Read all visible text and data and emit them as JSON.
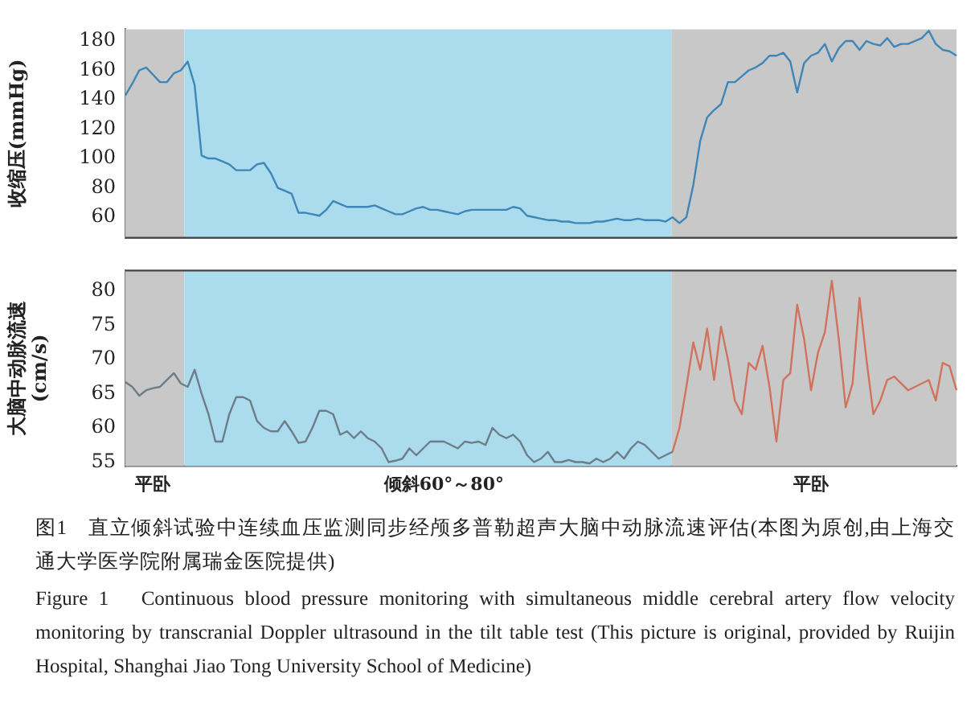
{
  "chart_data": [
    {
      "type": "line",
      "ylabel": "收缩压(mmHg)",
      "categories": [
        null,
        null,
        null,
        null,
        null,
        null,
        null,
        null,
        null,
        null,
        null,
        null,
        null,
        null,
        null,
        null,
        null,
        null,
        null,
        null,
        null,
        null,
        null,
        null,
        null,
        null,
        null,
        null,
        null,
        null,
        null,
        null,
        null,
        null,
        null,
        null,
        null,
        null,
        null,
        null,
        null,
        null,
        null,
        null,
        null,
        null,
        null,
        null,
        null,
        null,
        null,
        null,
        null,
        null,
        null,
        null,
        null,
        null,
        null,
        null,
        null,
        null,
        null,
        null,
        null,
        null,
        null,
        null,
        null,
        null,
        null,
        null,
        null,
        null,
        null,
        null,
        null,
        null,
        null,
        null,
        null,
        null,
        null,
        null,
        null,
        null,
        null,
        null,
        null,
        null,
        null,
        null,
        null,
        null,
        null,
        null,
        null,
        null,
        null,
        null,
        null,
        null,
        null,
        null,
        null,
        null,
        null,
        null,
        null,
        null,
        null,
        null,
        null,
        null,
        null,
        null,
        null,
        null,
        null,
        null,
        null
      ],
      "series": [
        {
          "color": "#3f86b8",
          "values": [
            143,
            151,
            160,
            162,
            157,
            152,
            152,
            158,
            160,
            166,
            150,
            102,
            100,
            100,
            98,
            96,
            92,
            92,
            92,
            96,
            97,
            90,
            80,
            78,
            76,
            63,
            63,
            62,
            61,
            65,
            71,
            69,
            67,
            67,
            67,
            67,
            68,
            66,
            64,
            62,
            62,
            64,
            66,
            67,
            65,
            65,
            64,
            63,
            62,
            64,
            65,
            65,
            65,
            65,
            65,
            65,
            67,
            66,
            61,
            60,
            59,
            58,
            58,
            57,
            57,
            56,
            56,
            56,
            57,
            57,
            58,
            59,
            58,
            58,
            59,
            58,
            58,
            58,
            57,
            60,
            56,
            60,
            82,
            112,
            128,
            133,
            137,
            152,
            152,
            156,
            160,
            162,
            165,
            170,
            170,
            172,
            166,
            145,
            165,
            170,
            172,
            178,
            166,
            175,
            180,
            180,
            174,
            180,
            178,
            177,
            182,
            176,
            178,
            178,
            180,
            182,
            187,
            178,
            174,
            173,
            170
          ]
        }
      ],
      "ylim": [
        46,
        188
      ],
      "yticks": [
        60,
        80,
        100,
        120,
        140,
        160,
        180
      ],
      "tick_labels": "y",
      "grid": false,
      "legend": false,
      "marker": "none"
    },
    {
      "type": "line",
      "ylabel": "大脑中动脉流速\n(cm/s)",
      "categories": [
        null,
        null,
        null,
        null,
        "平卧",
        null,
        null,
        null,
        null,
        null,
        null,
        null,
        null,
        null,
        null,
        null,
        null,
        null,
        null,
        null,
        null,
        null,
        null,
        null,
        null,
        null,
        null,
        null,
        null,
        null,
        null,
        null,
        null,
        null,
        null,
        null,
        null,
        null,
        null,
        null,
        null,
        null,
        null,
        null,
        null,
        null,
        "倾斜60°～80°",
        null,
        null,
        null,
        null,
        null,
        null,
        null,
        null,
        null,
        null,
        null,
        null,
        null,
        null,
        null,
        null,
        null,
        null,
        null,
        null,
        null,
        null,
        null,
        null,
        null,
        null,
        null,
        null,
        null,
        null,
        null,
        null,
        null,
        null,
        null,
        null,
        null,
        null,
        null,
        null,
        null,
        null,
        null,
        null,
        null,
        null,
        null,
        null,
        null,
        null,
        null,
        null,
        "平卧",
        null,
        null,
        null,
        null,
        null,
        null,
        null,
        null,
        null,
        null,
        null,
        null,
        null,
        null,
        null,
        null,
        null,
        null,
        null,
        null,
        null
      ],
      "series": [
        {
          "color": "#6d7d88",
          "values": [
            66.7,
            66,
            64.7,
            65.5,
            65.8,
            66,
            67,
            68,
            66.5,
            66,
            68.5,
            65,
            62,
            58,
            58,
            62,
            64.5,
            64.5,
            64,
            61,
            60,
            59.5,
            59.5,
            61,
            59.5,
            57.8,
            58,
            60,
            62.5,
            62.5,
            62,
            59,
            59.5,
            58.5,
            59.5,
            58.5,
            58,
            57,
            55,
            55.2,
            55.5,
            57,
            56,
            57,
            58,
            58,
            58,
            57.5,
            57,
            58,
            57.8,
            58,
            57.5,
            60,
            59,
            58.5,
            59,
            58,
            56,
            55,
            55.5,
            56.5,
            55,
            55,
            55.3,
            55,
            55,
            54.8,
            55.5,
            55,
            55.5,
            56.5,
            55.5,
            57,
            58,
            57.5,
            56.5,
            55.5,
            56,
            56.5,
            null,
            null,
            null,
            null,
            null,
            null,
            null,
            null,
            null,
            null,
            null,
            null,
            null,
            null,
            null,
            null,
            null,
            null,
            null,
            null,
            null,
            null,
            null,
            null,
            null,
            null,
            null,
            null,
            null,
            null,
            null,
            null,
            null,
            null,
            null,
            null,
            null,
            null,
            null,
            null,
            null
          ]
        },
        {
          "color": "#d0735c",
          "values": [
            null,
            null,
            null,
            null,
            null,
            null,
            null,
            null,
            null,
            null,
            null,
            null,
            null,
            null,
            null,
            null,
            null,
            null,
            null,
            null,
            null,
            null,
            null,
            null,
            null,
            null,
            null,
            null,
            null,
            null,
            null,
            null,
            null,
            null,
            null,
            null,
            null,
            null,
            null,
            null,
            null,
            null,
            null,
            null,
            null,
            null,
            null,
            null,
            null,
            null,
            null,
            null,
            null,
            null,
            null,
            null,
            null,
            null,
            null,
            null,
            null,
            null,
            null,
            null,
            null,
            null,
            null,
            null,
            null,
            null,
            null,
            null,
            null,
            null,
            null,
            null,
            null,
            null,
            null,
            56.5,
            60,
            66,
            72.5,
            68.5,
            74.5,
            67,
            74.8,
            70,
            64,
            62,
            69.5,
            68.5,
            72,
            66,
            58,
            67,
            68,
            78,
            73,
            65.5,
            71,
            74,
            81.5,
            73,
            63,
            66.5,
            79,
            70,
            62,
            64,
            67,
            67.5,
            66.5,
            65.5,
            66,
            66.5,
            67,
            64,
            69.5,
            69,
            65.5
          ]
        }
      ],
      "ylim": [
        54.4,
        83
      ],
      "yticks": [
        55,
        60,
        65,
        70,
        75,
        80
      ],
      "grid": false,
      "legend": false,
      "marker": "none",
      "annotations": [
        "图1　直立倾斜试验中连续血压监测同步经颅多普勒超声大脑中动脉流速评估(本图为原创,由上海交通大学医学院附属瑞金医院提供)",
        "Figure 1　Continuous blood pressure monitoring with simultaneous middle cerebral artery flow velocity monitoring by transcranial Doppler ultrasound in the tilt table test (This picture is original, provided by Ruijin Hospital, Shanghai Jiao Tong University School of Medicine)"
      ]
    }
  ]
}
